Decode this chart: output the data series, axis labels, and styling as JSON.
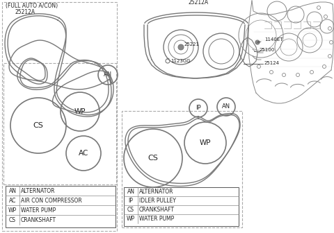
{
  "line_color": "#777777",
  "dark_color": "#222222",
  "light_line": "#aaaaaa",
  "legend_left": [
    [
      "AN",
      "ALTERNATOR"
    ],
    [
      "AC",
      "AIR CON COMPRESSOR"
    ],
    [
      "WP",
      "WATER PUMP"
    ],
    [
      "CS",
      "CRANKSHAFT"
    ]
  ],
  "legend_right": [
    [
      "AN",
      "ALTERNATOR"
    ],
    [
      "IP",
      "IDLER PULLEY"
    ],
    [
      "CS",
      "CRANKSHAFT"
    ],
    [
      "WP",
      "WATER PUMP"
    ]
  ]
}
